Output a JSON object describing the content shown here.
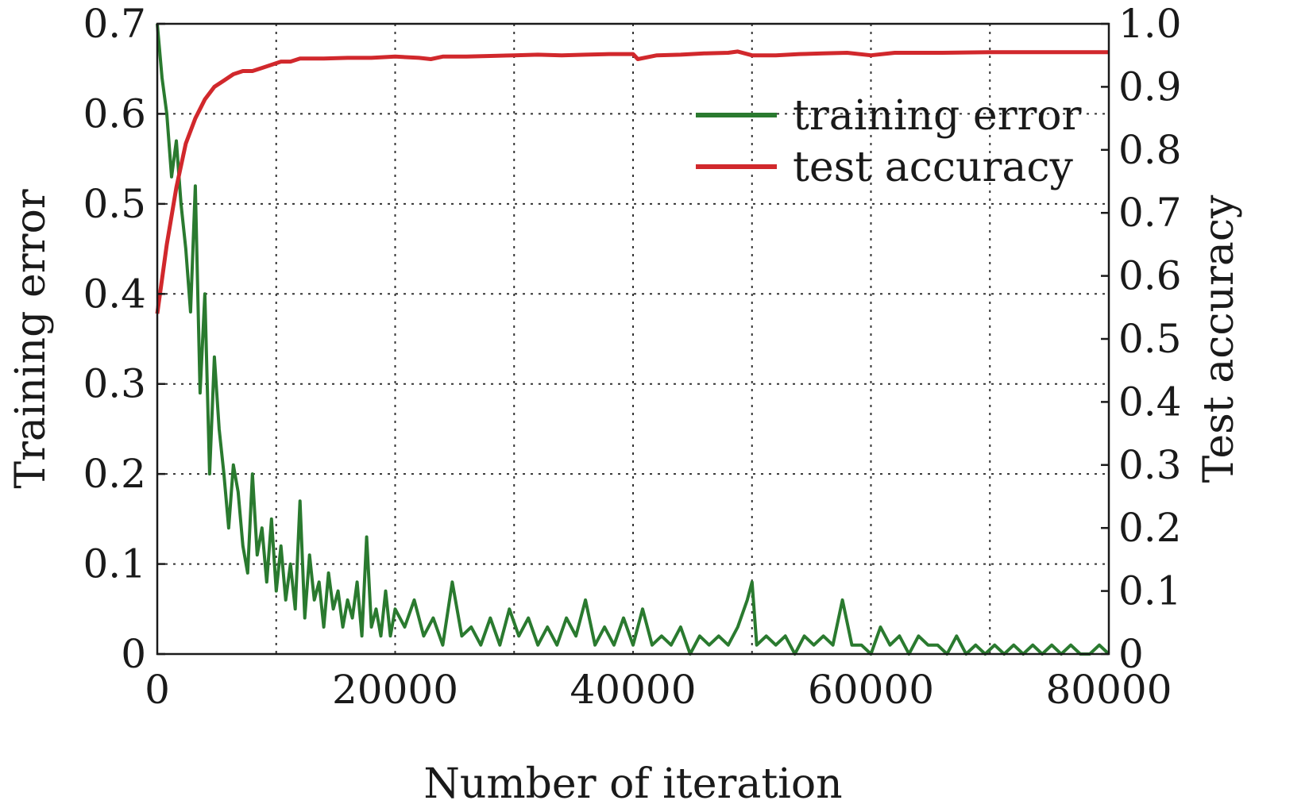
{
  "chart_data": {
    "type": "line",
    "xlabel": "Number of iteration",
    "ylabel_left": "Training error",
    "ylabel_right": "Test accuracy",
    "xlim": [
      0,
      80000
    ],
    "ylim_left": [
      0,
      0.7
    ],
    "ylim_right": [
      0,
      1.0
    ],
    "x_ticks": [
      "0",
      "20000",
      "40000",
      "60000",
      "80000"
    ],
    "y_ticks_left": [
      "0",
      "0.1",
      "0.2",
      "0.3",
      "0.4",
      "0.5",
      "0.6",
      "0.7"
    ],
    "y_ticks_right": [
      "0",
      "0.1",
      "0.2",
      "0.3",
      "0.4",
      "0.5",
      "0.6",
      "0.7",
      "0.8",
      "0.9",
      "1.0"
    ],
    "grid": true,
    "legend_position": "top-right",
    "series": [
      {
        "name": "training error",
        "axis": "left",
        "color": "#2a7a2f",
        "x": [
          0,
          400,
          800,
          1200,
          1600,
          2000,
          2400,
          2800,
          3200,
          3600,
          4000,
          4400,
          4800,
          5200,
          5600,
          6000,
          6400,
          6800,
          7200,
          7600,
          8000,
          8400,
          8800,
          9200,
          9600,
          10000,
          10400,
          10800,
          11200,
          11600,
          12000,
          12400,
          12800,
          13200,
          13600,
          14000,
          14400,
          14800,
          15200,
          15600,
          16000,
          16400,
          16800,
          17200,
          17600,
          18000,
          18400,
          18800,
          19200,
          19600,
          20000,
          20800,
          21600,
          22400,
          23200,
          24000,
          24800,
          25600,
          26400,
          27200,
          28000,
          28800,
          29600,
          30400,
          31200,
          32000,
          32800,
          33600,
          34400,
          35200,
          36000,
          36800,
          37600,
          38400,
          39200,
          40000,
          40800,
          41600,
          42400,
          43200,
          44000,
          44800,
          45600,
          46400,
          47200,
          48000,
          48800,
          49600,
          50000,
          50400,
          51200,
          52000,
          52800,
          53600,
          54400,
          55200,
          56000,
          56800,
          57600,
          58400,
          59200,
          60000,
          60800,
          61600,
          62400,
          63200,
          64000,
          64800,
          65600,
          66400,
          67200,
          68000,
          68800,
          69600,
          70400,
          71200,
          72000,
          72800,
          73600,
          74400,
          75200,
          76000,
          76800,
          77600,
          78400,
          79200,
          80000
        ],
        "values": [
          0.7,
          0.64,
          0.6,
          0.53,
          0.57,
          0.5,
          0.45,
          0.38,
          0.52,
          0.29,
          0.4,
          0.2,
          0.33,
          0.25,
          0.2,
          0.14,
          0.21,
          0.18,
          0.12,
          0.09,
          0.2,
          0.11,
          0.14,
          0.08,
          0.15,
          0.07,
          0.12,
          0.06,
          0.1,
          0.05,
          0.17,
          0.04,
          0.11,
          0.06,
          0.08,
          0.03,
          0.09,
          0.05,
          0.07,
          0.03,
          0.06,
          0.04,
          0.08,
          0.02,
          0.13,
          0.03,
          0.05,
          0.02,
          0.07,
          0.02,
          0.05,
          0.03,
          0.06,
          0.02,
          0.04,
          0.01,
          0.08,
          0.02,
          0.03,
          0.01,
          0.04,
          0.01,
          0.05,
          0.02,
          0.04,
          0.01,
          0.03,
          0.01,
          0.04,
          0.02,
          0.06,
          0.01,
          0.03,
          0.01,
          0.04,
          0.01,
          0.05,
          0.01,
          0.02,
          0.01,
          0.03,
          0.0,
          0.02,
          0.01,
          0.02,
          0.01,
          0.03,
          0.06,
          0.08,
          0.01,
          0.02,
          0.01,
          0.02,
          0.0,
          0.02,
          0.01,
          0.02,
          0.01,
          0.06,
          0.01,
          0.01,
          0.0,
          0.03,
          0.01,
          0.02,
          0.0,
          0.02,
          0.01,
          0.01,
          0.0,
          0.02,
          0.0,
          0.01,
          0.0,
          0.01,
          0.0,
          0.01,
          0.0,
          0.01,
          0.0,
          0.01,
          0.0,
          0.01,
          0.0,
          0.0,
          0.01,
          0.0
        ]
      },
      {
        "name": "test accuracy",
        "axis": "right",
        "color": "#d1282c",
        "x": [
          0,
          800,
          1600,
          2400,
          3200,
          4000,
          4800,
          5600,
          6400,
          7200,
          8000,
          8800,
          9600,
          10400,
          11200,
          12000,
          14000,
          16000,
          18000,
          20000,
          22000,
          23000,
          24000,
          26000,
          28000,
          30000,
          32000,
          34000,
          36000,
          38000,
          40000,
          40400,
          42000,
          44000,
          46000,
          48000,
          48800,
          50000,
          52000,
          54000,
          56000,
          58000,
          60000,
          62000,
          66000,
          70000,
          74000,
          78000,
          80000
        ],
        "values": [
          0.54,
          0.65,
          0.74,
          0.81,
          0.85,
          0.88,
          0.9,
          0.91,
          0.92,
          0.925,
          0.925,
          0.93,
          0.935,
          0.94,
          0.94,
          0.945,
          0.945,
          0.946,
          0.946,
          0.948,
          0.946,
          0.944,
          0.948,
          0.948,
          0.949,
          0.95,
          0.951,
          0.95,
          0.951,
          0.952,
          0.952,
          0.944,
          0.95,
          0.951,
          0.953,
          0.954,
          0.956,
          0.95,
          0.95,
          0.952,
          0.953,
          0.954,
          0.95,
          0.954,
          0.954,
          0.955,
          0.955,
          0.955,
          0.955
        ]
      }
    ]
  }
}
